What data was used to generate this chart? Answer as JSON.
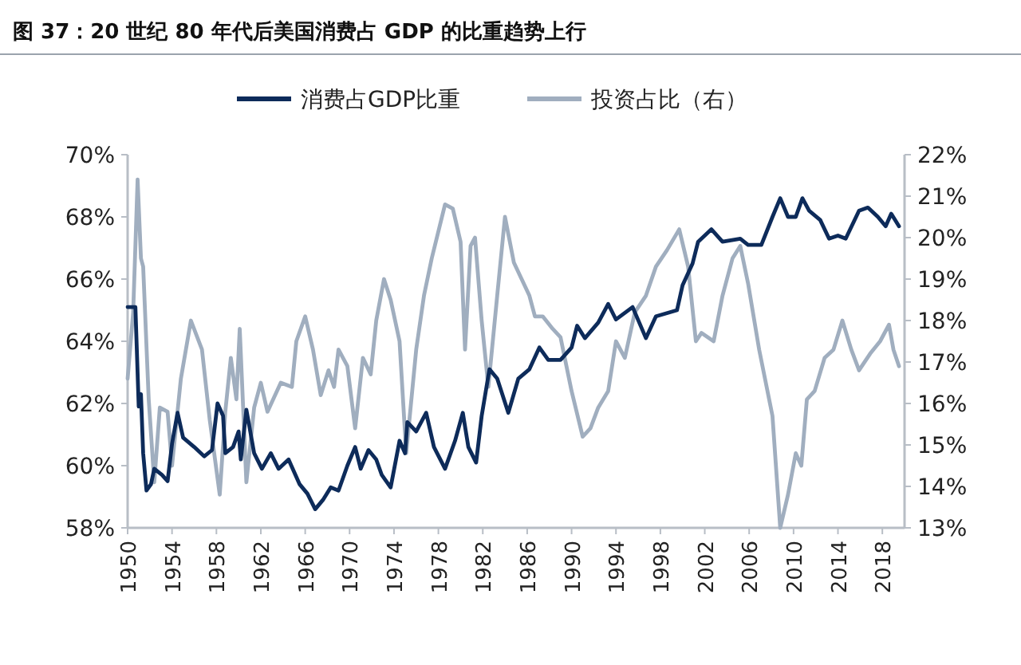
{
  "chart_data": {
    "type": "line",
    "title": "图 37：20 世纪 80 年代后美国消费占 GDP 的比重趋势上行",
    "legend": "top",
    "grid": false,
    "marker": "none",
    "line_style": "solid",
    "xlim": [
      1950,
      2020
    ],
    "xticks": [
      1950,
      1954,
      1958,
      1962,
      1966,
      1970,
      1974,
      1978,
      1982,
      1986,
      1990,
      1994,
      1998,
      2002,
      2006,
      2010,
      2014,
      2018
    ],
    "ylim": [
      58,
      70
    ],
    "yticks": [
      {
        "value": 58,
        "label": "58%"
      },
      {
        "value": 60,
        "label": "60%"
      },
      {
        "value": 62,
        "label": "62%"
      },
      {
        "value": 64,
        "label": "64%"
      },
      {
        "value": 66,
        "label": "66%"
      },
      {
        "value": 68,
        "label": "68%"
      },
      {
        "value": 70,
        "label": "70%"
      }
    ],
    "y2lim": [
      13,
      22
    ],
    "y2ticks": [
      {
        "value": 13,
        "label": "13%"
      },
      {
        "value": 14,
        "label": "14%"
      },
      {
        "value": 15,
        "label": "15%"
      },
      {
        "value": 16,
        "label": "16%"
      },
      {
        "value": 17,
        "label": "17%"
      },
      {
        "value": 18,
        "label": "18%"
      },
      {
        "value": 19,
        "label": "19%"
      },
      {
        "value": 20,
        "label": "20%"
      },
      {
        "value": 21,
        "label": "21%"
      },
      {
        "value": 22,
        "label": "22%"
      }
    ],
    "series": [
      {
        "name": "消费占GDP比重",
        "color": "#0d2b5a",
        "x": [
          1950.0,
          1950.7,
          1951.0,
          1951.2,
          1951.4,
          1951.7,
          1952.1,
          1952.4,
          1953.1,
          1953.6,
          1954.0,
          1954.5,
          1955.0,
          1956.0,
          1956.9,
          1957.6,
          1958.1,
          1958.6,
          1958.8,
          1959.5,
          1960.0,
          1960.2,
          1960.7,
          1961.4,
          1962.1,
          1962.9,
          1963.6,
          1964.5,
          1965.5,
          1966.2,
          1966.9,
          1967.6,
          1968.3,
          1969.0,
          1969.8,
          1970.5,
          1971.0,
          1971.7,
          1972.4,
          1972.9,
          1973.7,
          1974.5,
          1975.0,
          1975.2,
          1976.0,
          1976.9,
          1977.6,
          1978.6,
          1979.5,
          1980.2,
          1980.7,
          1981.4,
          1981.9,
          1982.6,
          1983.3,
          1984.3,
          1985.2,
          1986.2,
          1987.1,
          1987.9,
          1989.0,
          1990.0,
          1990.5,
          1991.2,
          1992.4,
          1993.3,
          1994.0,
          1995.5,
          1996.7,
          1997.6,
          1999.5,
          2000.0,
          2000.9,
          2001.4,
          2002.6,
          2003.6,
          2005.2,
          2005.9,
          2007.1,
          2008.1,
          2008.8,
          2009.5,
          2010.2,
          2010.8,
          2011.4,
          2012.4,
          2013.2,
          2014.0,
          2014.7,
          2015.9,
          2016.7,
          2017.6,
          2018.3,
          2018.8,
          2019.5
        ],
        "values": [
          65.1,
          65.1,
          61.9,
          62.3,
          60.4,
          59.2,
          59.4,
          59.9,
          59.7,
          59.5,
          60.7,
          61.7,
          60.9,
          60.6,
          60.3,
          60.5,
          62.0,
          61.6,
          60.4,
          60.6,
          61.1,
          60.2,
          61.8,
          60.4,
          59.9,
          60.4,
          59.9,
          60.2,
          59.4,
          59.1,
          58.6,
          58.9,
          59.3,
          59.2,
          60.0,
          60.6,
          59.9,
          60.5,
          60.2,
          59.7,
          59.3,
          60.8,
          60.4,
          61.4,
          61.1,
          61.7,
          60.6,
          59.9,
          60.8,
          61.7,
          60.6,
          60.1,
          61.6,
          63.1,
          62.8,
          61.7,
          62.8,
          63.1,
          63.8,
          63.4,
          63.4,
          63.8,
          64.5,
          64.1,
          64.6,
          65.2,
          64.7,
          65.1,
          64.1,
          64.8,
          65.0,
          65.8,
          66.5,
          67.2,
          67.6,
          67.2,
          67.3,
          67.1,
          67.1,
          68.0,
          68.6,
          68.0,
          68.0,
          68.6,
          68.2,
          67.9,
          67.3,
          67.4,
          67.3,
          68.2,
          68.3,
          68.0,
          67.7,
          68.1,
          67.7
        ]
      },
      {
        "name": "投资占比（右）",
        "color": "#a0aebf",
        "axis": "y2",
        "x": [
          1950.0,
          1950.5,
          1950.9,
          1951.2,
          1951.4,
          1951.9,
          1952.4,
          1952.9,
          1953.6,
          1954.0,
          1954.8,
          1955.7,
          1956.7,
          1957.4,
          1958.3,
          1958.8,
          1959.3,
          1959.8,
          1960.1,
          1960.7,
          1961.4,
          1962.0,
          1962.6,
          1963.8,
          1964.8,
          1965.2,
          1966.0,
          1966.7,
          1967.4,
          1968.1,
          1968.6,
          1969.0,
          1969.8,
          1970.5,
          1971.2,
          1971.9,
          1972.4,
          1973.1,
          1973.7,
          1974.5,
          1975.1,
          1976.0,
          1976.7,
          1977.4,
          1978.6,
          1979.3,
          1980.0,
          1980.4,
          1980.9,
          1981.3,
          1981.9,
          1982.5,
          1983.3,
          1984.0,
          1984.8,
          1985.5,
          1986.2,
          1986.7,
          1987.4,
          1988.3,
          1989.0,
          1990.0,
          1991.0,
          1991.7,
          1992.4,
          1993.3,
          1994.0,
          1994.8,
          1995.7,
          1996.7,
          1997.6,
          1998.6,
          1999.7,
          2000.5,
          2001.2,
          2001.7,
          2002.8,
          2003.6,
          2004.5,
          2005.2,
          2005.9,
          2006.9,
          2008.1,
          2008.8,
          2009.5,
          2010.2,
          2010.7,
          2011.2,
          2011.9,
          2012.8,
          2013.6,
          2014.4,
          2015.2,
          2015.9,
          2016.9,
          2017.8,
          2018.6,
          2019.0,
          2019.5
        ],
        "values": [
          16.6,
          18.2,
          21.4,
          19.5,
          19.3,
          16.1,
          14.1,
          15.9,
          15.8,
          14.5,
          16.6,
          18.0,
          17.3,
          15.6,
          13.8,
          15.8,
          17.1,
          16.1,
          17.8,
          14.1,
          15.9,
          16.5,
          15.8,
          16.5,
          16.4,
          17.5,
          18.1,
          17.3,
          16.2,
          16.8,
          16.4,
          17.3,
          16.9,
          15.4,
          17.1,
          16.7,
          18.0,
          19.0,
          18.5,
          17.5,
          14.8,
          17.3,
          18.6,
          19.5,
          20.8,
          20.7,
          19.9,
          17.3,
          19.8,
          20.0,
          18.0,
          16.4,
          18.6,
          20.5,
          19.4,
          19.0,
          18.6,
          18.1,
          18.1,
          17.8,
          17.6,
          16.3,
          15.2,
          15.4,
          15.9,
          16.3,
          17.5,
          17.1,
          18.2,
          18.6,
          19.3,
          19.7,
          20.2,
          19.3,
          17.5,
          17.7,
          17.5,
          18.6,
          19.5,
          19.8,
          18.9,
          17.3,
          15.7,
          13.0,
          13.8,
          14.8,
          14.5,
          16.1,
          16.3,
          17.1,
          17.3,
          18.0,
          17.3,
          16.8,
          17.2,
          17.5,
          17.9,
          17.3,
          16.9
        ]
      }
    ]
  }
}
